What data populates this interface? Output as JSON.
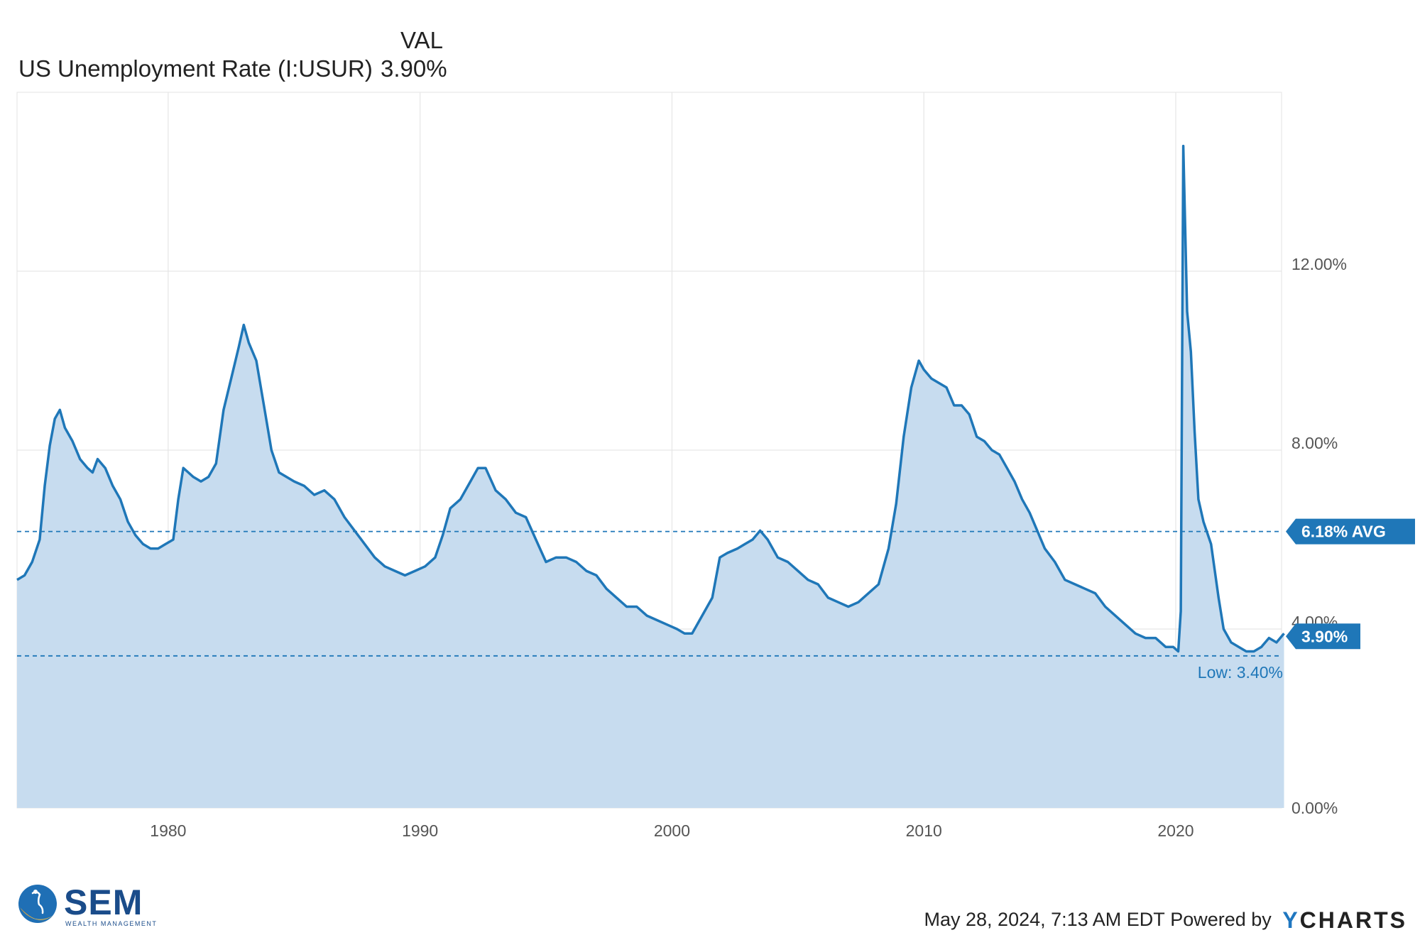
{
  "legend": {
    "column_header": "VAL",
    "series_name": "US Unemployment Rate (I:USUR)",
    "series_value": "3.90%"
  },
  "chart_data": {
    "type": "area",
    "title": "",
    "series": [
      {
        "name": "US Unemployment Rate (I:USUR)",
        "color": "#1f77b8",
        "fill": "#c7dcef",
        "points": [
          [
            1974.0,
            5.1
          ],
          [
            1974.3,
            5.2
          ],
          [
            1974.6,
            5.5
          ],
          [
            1974.9,
            6.0
          ],
          [
            1975.1,
            7.2
          ],
          [
            1975.3,
            8.1
          ],
          [
            1975.5,
            8.7
          ],
          [
            1975.7,
            8.9
          ],
          [
            1975.9,
            8.5
          ],
          [
            1976.2,
            8.2
          ],
          [
            1976.5,
            7.8
          ],
          [
            1976.8,
            7.6
          ],
          [
            1977.0,
            7.5
          ],
          [
            1977.2,
            7.8
          ],
          [
            1977.5,
            7.6
          ],
          [
            1977.8,
            7.2
          ],
          [
            1978.1,
            6.9
          ],
          [
            1978.4,
            6.4
          ],
          [
            1978.7,
            6.1
          ],
          [
            1979.0,
            5.9
          ],
          [
            1979.3,
            5.8
          ],
          [
            1979.6,
            5.8
          ],
          [
            1979.9,
            5.9
          ],
          [
            1980.2,
            6.0
          ],
          [
            1980.4,
            6.9
          ],
          [
            1980.6,
            7.6
          ],
          [
            1980.8,
            7.5
          ],
          [
            1981.0,
            7.4
          ],
          [
            1981.3,
            7.3
          ],
          [
            1981.6,
            7.4
          ],
          [
            1981.9,
            7.7
          ],
          [
            1982.2,
            8.9
          ],
          [
            1982.5,
            9.6
          ],
          [
            1982.8,
            10.3
          ],
          [
            1983.0,
            10.8
          ],
          [
            1983.2,
            10.4
          ],
          [
            1983.5,
            10.0
          ],
          [
            1983.8,
            9.0
          ],
          [
            1984.1,
            8.0
          ],
          [
            1984.4,
            7.5
          ],
          [
            1984.7,
            7.4
          ],
          [
            1985.0,
            7.3
          ],
          [
            1985.4,
            7.2
          ],
          [
            1985.8,
            7.0
          ],
          [
            1986.2,
            7.1
          ],
          [
            1986.6,
            6.9
          ],
          [
            1987.0,
            6.5
          ],
          [
            1987.4,
            6.2
          ],
          [
            1987.8,
            5.9
          ],
          [
            1988.2,
            5.6
          ],
          [
            1988.6,
            5.4
          ],
          [
            1989.0,
            5.3
          ],
          [
            1989.4,
            5.2
          ],
          [
            1989.8,
            5.3
          ],
          [
            1990.2,
            5.4
          ],
          [
            1990.6,
            5.6
          ],
          [
            1990.9,
            6.1
          ],
          [
            1991.2,
            6.7
          ],
          [
            1991.6,
            6.9
          ],
          [
            1992.0,
            7.3
          ],
          [
            1992.3,
            7.6
          ],
          [
            1992.6,
            7.6
          ],
          [
            1993.0,
            7.1
          ],
          [
            1993.4,
            6.9
          ],
          [
            1993.8,
            6.6
          ],
          [
            1994.2,
            6.5
          ],
          [
            1994.6,
            6.0
          ],
          [
            1995.0,
            5.5
          ],
          [
            1995.4,
            5.6
          ],
          [
            1995.8,
            5.6
          ],
          [
            1996.2,
            5.5
          ],
          [
            1996.6,
            5.3
          ],
          [
            1997.0,
            5.2
          ],
          [
            1997.4,
            4.9
          ],
          [
            1997.8,
            4.7
          ],
          [
            1998.2,
            4.5
          ],
          [
            1998.6,
            4.5
          ],
          [
            1999.0,
            4.3
          ],
          [
            1999.4,
            4.2
          ],
          [
            1999.8,
            4.1
          ],
          [
            2000.2,
            4.0
          ],
          [
            2000.5,
            3.9
          ],
          [
            2000.8,
            3.9
          ],
          [
            2001.2,
            4.3
          ],
          [
            2001.6,
            4.7
          ],
          [
            2001.9,
            5.6
          ],
          [
            2002.2,
            5.7
          ],
          [
            2002.6,
            5.8
          ],
          [
            2002.9,
            5.9
          ],
          [
            2003.2,
            6.0
          ],
          [
            2003.5,
            6.2
          ],
          [
            2003.8,
            6.0
          ],
          [
            2004.2,
            5.6
          ],
          [
            2004.6,
            5.5
          ],
          [
            2005.0,
            5.3
          ],
          [
            2005.4,
            5.1
          ],
          [
            2005.8,
            5.0
          ],
          [
            2006.2,
            4.7
          ],
          [
            2006.6,
            4.6
          ],
          [
            2007.0,
            4.5
          ],
          [
            2007.4,
            4.6
          ],
          [
            2007.8,
            4.8
          ],
          [
            2008.2,
            5.0
          ],
          [
            2008.6,
            5.8
          ],
          [
            2008.9,
            6.8
          ],
          [
            2009.2,
            8.3
          ],
          [
            2009.5,
            9.4
          ],
          [
            2009.8,
            10.0
          ],
          [
            2010.0,
            9.8
          ],
          [
            2010.3,
            9.6
          ],
          [
            2010.6,
            9.5
          ],
          [
            2010.9,
            9.4
          ],
          [
            2011.2,
            9.0
          ],
          [
            2011.5,
            9.0
          ],
          [
            2011.8,
            8.8
          ],
          [
            2012.1,
            8.3
          ],
          [
            2012.4,
            8.2
          ],
          [
            2012.7,
            8.0
          ],
          [
            2013.0,
            7.9
          ],
          [
            2013.3,
            7.6
          ],
          [
            2013.6,
            7.3
          ],
          [
            2013.9,
            6.9
          ],
          [
            2014.2,
            6.6
          ],
          [
            2014.5,
            6.2
          ],
          [
            2014.8,
            5.8
          ],
          [
            2015.2,
            5.5
          ],
          [
            2015.6,
            5.1
          ],
          [
            2016.0,
            5.0
          ],
          [
            2016.4,
            4.9
          ],
          [
            2016.8,
            4.8
          ],
          [
            2017.2,
            4.5
          ],
          [
            2017.6,
            4.3
          ],
          [
            2018.0,
            4.1
          ],
          [
            2018.4,
            3.9
          ],
          [
            2018.8,
            3.8
          ],
          [
            2019.2,
            3.8
          ],
          [
            2019.6,
            3.6
          ],
          [
            2019.9,
            3.6
          ],
          [
            2020.1,
            3.5
          ],
          [
            2020.2,
            4.4
          ],
          [
            2020.3,
            14.8
          ],
          [
            2020.45,
            11.1
          ],
          [
            2020.6,
            10.2
          ],
          [
            2020.75,
            8.4
          ],
          [
            2020.9,
            6.9
          ],
          [
            2021.1,
            6.4
          ],
          [
            2021.4,
            5.9
          ],
          [
            2021.7,
            4.7
          ],
          [
            2021.9,
            4.0
          ],
          [
            2022.2,
            3.7
          ],
          [
            2022.5,
            3.6
          ],
          [
            2022.8,
            3.5
          ],
          [
            2023.1,
            3.5
          ],
          [
            2023.4,
            3.6
          ],
          [
            2023.7,
            3.8
          ],
          [
            2024.0,
            3.7
          ],
          [
            2024.3,
            3.9
          ]
        ]
      }
    ],
    "x_range": [
      1974.0,
      2024.2
    ],
    "y_range": [
      0,
      16
    ],
    "x_ticks": [
      {
        "value": 1980,
        "label": "1980"
      },
      {
        "value": 1990,
        "label": "1990"
      },
      {
        "value": 2000,
        "label": "2000"
      },
      {
        "value": 2010,
        "label": "2010"
      },
      {
        "value": 2020,
        "label": "2020"
      }
    ],
    "y_ticks": [
      {
        "value": 0,
        "label": "0.00%"
      },
      {
        "value": 4,
        "label": "4.00%"
      },
      {
        "value": 8,
        "label": "8.00%"
      },
      {
        "value": 12,
        "label": "12.00%"
      }
    ],
    "reference_lines": [
      {
        "value": 6.18,
        "label": "6.18% AVG",
        "style": "dashed"
      },
      {
        "value": 3.4,
        "label": "Low: 3.40%",
        "style": "dashed"
      }
    ],
    "current_value_badge": {
      "value": 3.9,
      "label": "3.90%"
    },
    "grid": true,
    "legend_position": "top-left",
    "colors": {
      "line": "#1f77b8",
      "fill": "#c7dcef",
      "badge": "#1f77b8",
      "grid": "#e6e6e6"
    }
  },
  "footer": {
    "logo_text": "SEM",
    "logo_subtitle": "WEALTH MANAGEMENT",
    "timestamp": "May 28, 2024, 7:13 AM EDT",
    "powered_by": "Powered by",
    "brand_prefix": "Y",
    "brand_rest": "CHARTS"
  }
}
